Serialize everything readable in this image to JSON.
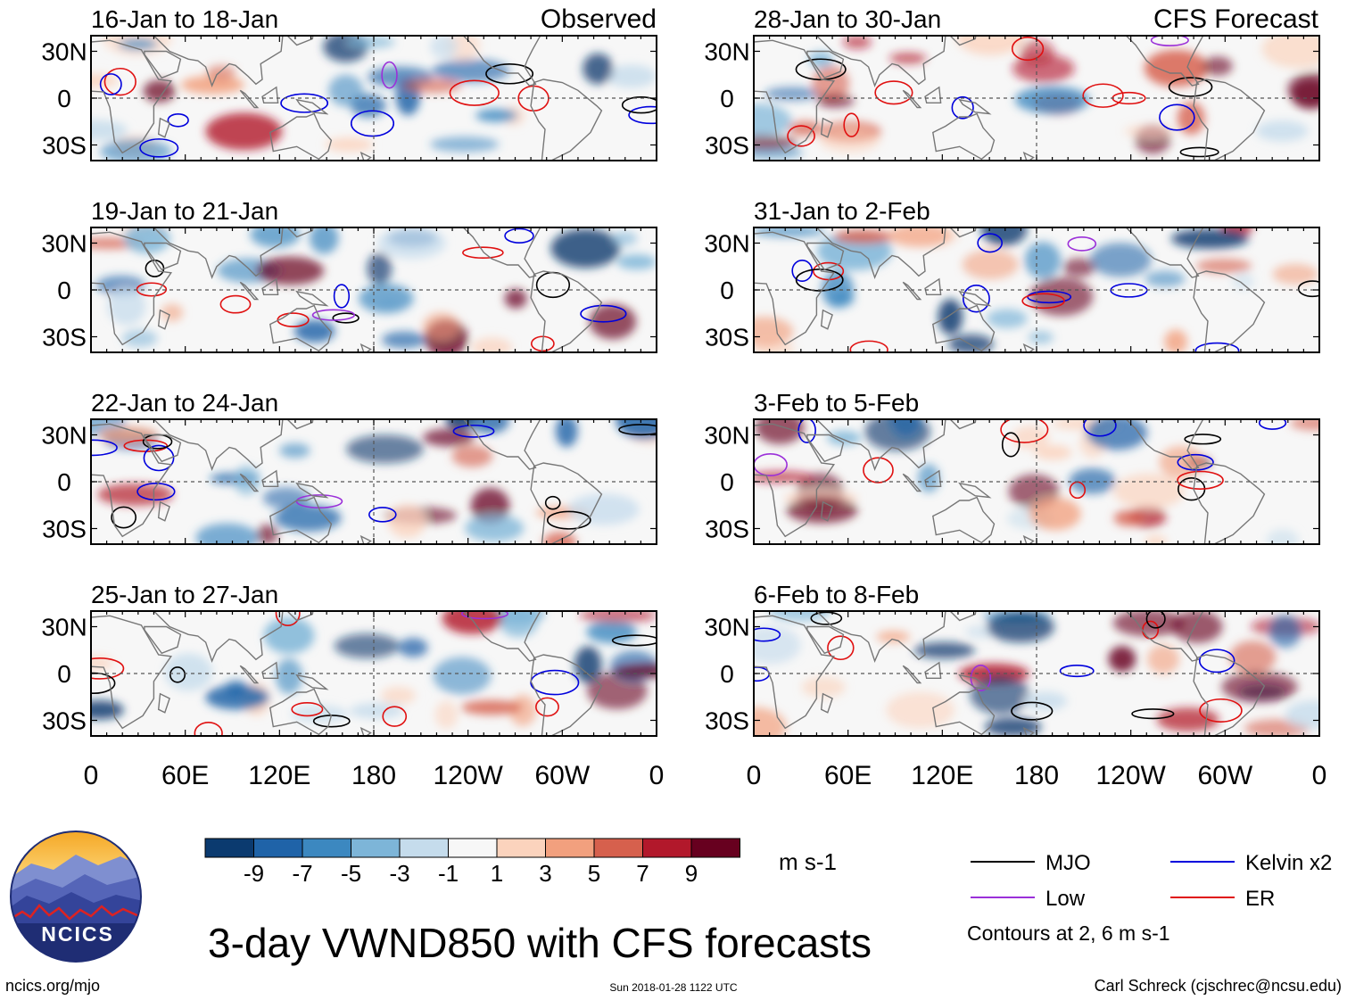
{
  "chart_data": {
    "type": "heatmap",
    "title": "3-day VWND850 with CFS forecasts",
    "variable": "VWND850",
    "units": "m s-1",
    "column_headers": {
      "left": "Observed",
      "right": "CFS Forecast"
    },
    "panels_observed": [
      {
        "title": "16-Jan to 18-Jan"
      },
      {
        "title": "19-Jan to 21-Jan"
      },
      {
        "title": "22-Jan to 24-Jan"
      },
      {
        "title": "25-Jan to 27-Jan"
      }
    ],
    "panels_forecast": [
      {
        "title": "28-Jan to 30-Jan"
      },
      {
        "title": "31-Jan to 2-Feb"
      },
      {
        "title": "3-Feb to 5-Feb"
      },
      {
        "title": "6-Feb to 8-Feb"
      }
    ],
    "x_ticks": [
      "0",
      "60E",
      "120E",
      "180",
      "120W",
      "60W",
      "0"
    ],
    "y_ticks": [
      "30N",
      "0",
      "30S"
    ],
    "colorbar": {
      "colors": [
        "#0b3a6f",
        "#1f63a8",
        "#3c88c0",
        "#7db5d8",
        "#c5dcec",
        "#f7f7f7",
        "#fbd3bd",
        "#f2a07e",
        "#d6604d",
        "#b2182b",
        "#67001f"
      ],
      "labels": [
        "-9",
        "-7",
        "-5",
        "-3",
        "-1",
        "1",
        "3",
        "5",
        "7",
        "9"
      ]
    },
    "legend": [
      {
        "label": "MJO",
        "color": "#000000"
      },
      {
        "label": "Kelvin x2",
        "color": "#0000dd"
      },
      {
        "label": "Low",
        "color": "#9b30d9"
      },
      {
        "label": "ER",
        "color": "#e01010"
      }
    ],
    "contour_note": "Contours at 2, 6 m s-1"
  },
  "logo": {
    "text": "NCICS"
  },
  "footer": {
    "url": "ncics.org/mjo",
    "timestamp": "Sun 2018-01-28 1122 UTC",
    "credit": "Carl Schreck (cjschrec@ncsu.edu)"
  }
}
